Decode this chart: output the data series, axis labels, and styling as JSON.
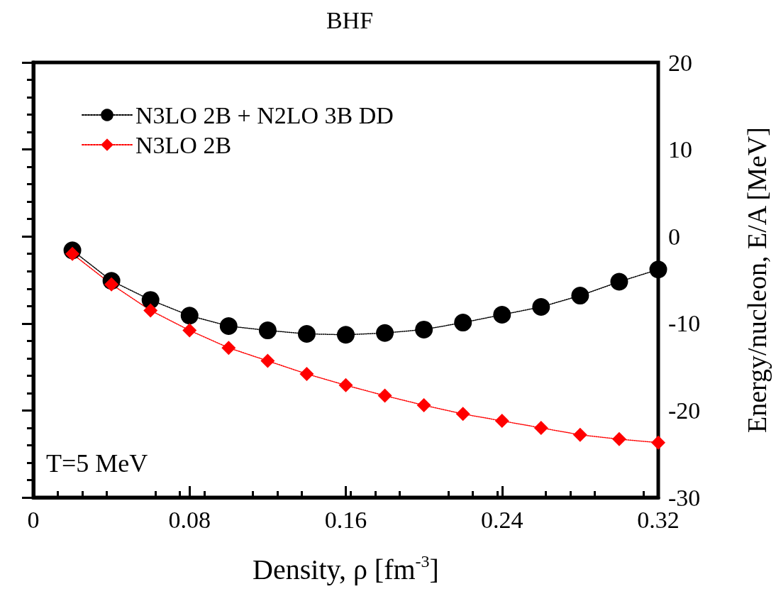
{
  "chart_data": {
    "type": "line",
    "title": "BHF",
    "xlabel": "Density, ρ [fm$^{-3}$]",
    "ylabel": "Energy/nucleon, E/A [MeV]",
    "x": [
      0.02,
      0.04,
      0.06,
      0.08,
      0.1,
      0.12,
      0.14,
      0.16,
      0.18,
      0.2,
      0.22,
      0.24,
      0.26,
      0.28,
      0.3,
      0.32
    ],
    "series": [
      {
        "name": "N3LO 2B + N2LO 3B DD",
        "color": "#000000",
        "marker": "circle",
        "values": [
          -1.6,
          -5.1,
          -7.3,
          -9.1,
          -10.3,
          -10.8,
          -11.2,
          -11.3,
          -11.1,
          -10.7,
          -9.9,
          -9.0,
          -8.1,
          -6.8,
          -5.2,
          -3.8
        ]
      },
      {
        "name": "N3LO 2B",
        "color": "#ff0000",
        "marker": "diamond",
        "values": [
          -2.0,
          -5.5,
          -8.5,
          -10.8,
          -12.8,
          -14.3,
          -15.8,
          -17.1,
          -18.3,
          -19.4,
          -20.4,
          -21.2,
          -22.0,
          -22.8,
          -23.3,
          -23.7
        ]
      }
    ],
    "xlim": [
      0,
      0.32
    ],
    "xticks": [
      0,
      0.08,
      0.16,
      0.24,
      0.32
    ],
    "ylim": [
      -30,
      20
    ],
    "yticks": [
      -30,
      -20,
      -10,
      0,
      10,
      20
    ],
    "line_style": "dotted",
    "legend": "top left",
    "grid": false,
    "annotations": [
      "T=5 MeV"
    ]
  }
}
